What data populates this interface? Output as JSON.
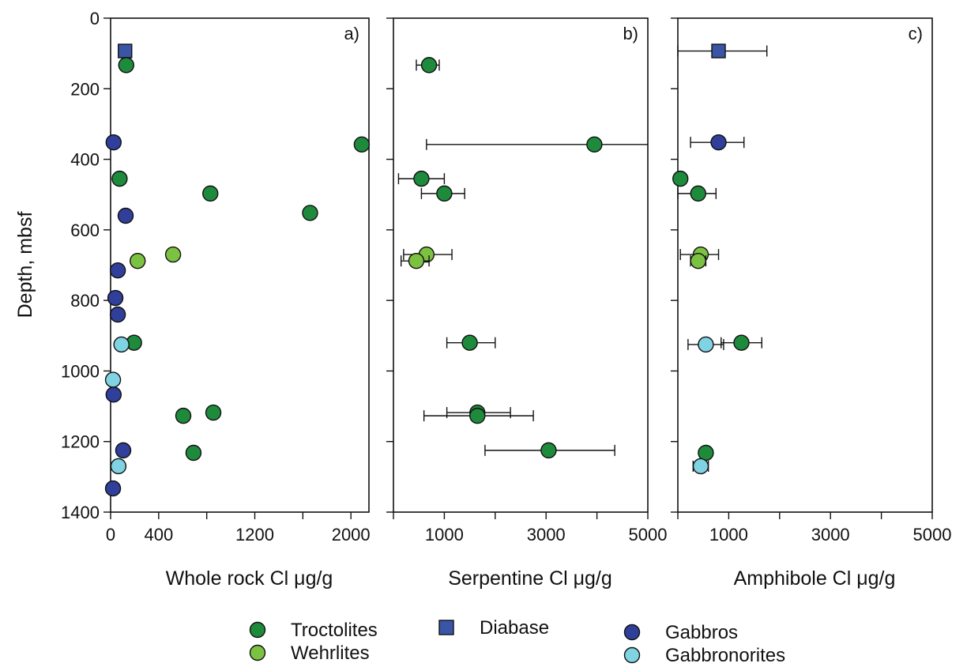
{
  "colors": {
    "troctolites": "#1e8a3c",
    "wehrlites": "#7cc242",
    "diabase": "#3a55a6",
    "gabbros": "#2f3f9a",
    "gabbronorites": "#7fd3e3"
  },
  "legend": [
    {
      "key": "troctolites",
      "label": "Troctolites",
      "marker": "circle"
    },
    {
      "key": "wehrlites",
      "label": "Wehrlites",
      "marker": "circle"
    },
    {
      "key": "diabase",
      "label": "Diabase",
      "marker": "square"
    },
    {
      "key": "gabbros",
      "label": "Gabbros",
      "marker": "circle"
    },
    {
      "key": "gabbronorites",
      "label": "Gabbronorites",
      "marker": "circle"
    }
  ],
  "chart_data": [
    {
      "type": "scatter",
      "panel_label": "a)",
      "xlabel": "Whole rock Cl μg/g",
      "ylabel": "Depth, mbsf",
      "xlim": [
        0,
        2150
      ],
      "ylim": [
        1400,
        0
      ],
      "x_ticks": [
        0,
        400,
        1200,
        2000
      ],
      "y_ticks": [
        0,
        200,
        400,
        600,
        800,
        1000,
        1200,
        1400
      ],
      "points": [
        {
          "series": "diabase",
          "x": 120,
          "y": 93
        },
        {
          "series": "troctolites",
          "x": 130,
          "y": 133
        },
        {
          "series": "gabbros",
          "x": 25,
          "y": 352
        },
        {
          "series": "troctolites",
          "x": 2090,
          "y": 358
        },
        {
          "series": "troctolites",
          "x": 75,
          "y": 455
        },
        {
          "series": "troctolites",
          "x": 830,
          "y": 497
        },
        {
          "series": "troctolites",
          "x": 1660,
          "y": 552
        },
        {
          "series": "gabbros",
          "x": 125,
          "y": 560
        },
        {
          "series": "wehrlites",
          "x": 520,
          "y": 670
        },
        {
          "series": "wehrlites",
          "x": 225,
          "y": 688
        },
        {
          "series": "gabbros",
          "x": 60,
          "y": 715
        },
        {
          "series": "gabbros",
          "x": 40,
          "y": 793
        },
        {
          "series": "gabbros",
          "x": 60,
          "y": 840
        },
        {
          "series": "troctolites",
          "x": 195,
          "y": 920
        },
        {
          "series": "gabbronorites",
          "x": 90,
          "y": 925
        },
        {
          "series": "gabbronorites",
          "x": 20,
          "y": 1025
        },
        {
          "series": "gabbros",
          "x": 25,
          "y": 1067
        },
        {
          "series": "troctolites",
          "x": 855,
          "y": 1118
        },
        {
          "series": "troctolites",
          "x": 605,
          "y": 1127
        },
        {
          "series": "gabbros",
          "x": 105,
          "y": 1225
        },
        {
          "series": "troctolites",
          "x": 690,
          "y": 1232
        },
        {
          "series": "gabbronorites",
          "x": 65,
          "y": 1270
        },
        {
          "series": "gabbros",
          "x": 20,
          "y": 1333
        }
      ]
    },
    {
      "type": "scatter",
      "panel_label": "b)",
      "xlabel": "Serpentine Cl μg/g",
      "xlim": [
        0,
        5000
      ],
      "ylim": [
        1400,
        0
      ],
      "x_ticks": [
        1000,
        3000,
        5000
      ],
      "points": [
        {
          "series": "troctolites",
          "x": 700,
          "y": 133,
          "xerr": [
            450,
            900
          ]
        },
        {
          "series": "troctolites",
          "x": 3950,
          "y": 358,
          "xerr": [
            650,
            5000
          ]
        },
        {
          "series": "troctolites",
          "x": 550,
          "y": 455,
          "xerr": [
            100,
            1000
          ]
        },
        {
          "series": "troctolites",
          "x": 1000,
          "y": 497,
          "xerr": [
            550,
            1400
          ]
        },
        {
          "series": "wehrlites",
          "x": 650,
          "y": 670,
          "xerr": [
            200,
            1150
          ]
        },
        {
          "series": "wehrlites",
          "x": 450,
          "y": 688,
          "xerr": [
            150,
            700
          ]
        },
        {
          "series": "troctolites",
          "x": 1500,
          "y": 920,
          "xerr": [
            1050,
            2000
          ]
        },
        {
          "series": "troctolites",
          "x": 1650,
          "y": 1118,
          "xerr": [
            1050,
            2300
          ]
        },
        {
          "series": "troctolites",
          "x": 1650,
          "y": 1127,
          "xerr": [
            600,
            2750
          ]
        },
        {
          "series": "troctolites",
          "x": 3050,
          "y": 1225,
          "xerr": [
            1800,
            4350
          ]
        }
      ]
    },
    {
      "type": "scatter",
      "panel_label": "c)",
      "xlabel": "Amphibole Cl μg/g",
      "xlim": [
        0,
        5000
      ],
      "ylim": [
        1400,
        0
      ],
      "x_ticks": [
        1000,
        3000,
        5000
      ],
      "points": [
        {
          "series": "diabase",
          "x": 800,
          "y": 93,
          "xerr": [
            0,
            1750
          ]
        },
        {
          "series": "gabbros",
          "x": 800,
          "y": 352,
          "xerr": [
            250,
            1300
          ]
        },
        {
          "series": "troctolites",
          "x": 50,
          "y": 455
        },
        {
          "series": "troctolites",
          "x": 400,
          "y": 497,
          "xerr": [
            0,
            750
          ]
        },
        {
          "series": "wehrlites",
          "x": 450,
          "y": 670,
          "xerr": [
            50,
            800
          ]
        },
        {
          "series": "wehrlites",
          "x": 400,
          "y": 688,
          "xerr": [
            250,
            550
          ]
        },
        {
          "series": "troctolites",
          "x": 1250,
          "y": 920,
          "xerr": [
            850,
            1650
          ]
        },
        {
          "series": "gabbronorites",
          "x": 550,
          "y": 925,
          "xerr": [
            200,
            900
          ]
        },
        {
          "series": "troctolites",
          "x": 550,
          "y": 1232
        },
        {
          "series": "gabbronorites",
          "x": 450,
          "y": 1270,
          "xerr": [
            300,
            600
          ]
        }
      ]
    }
  ]
}
